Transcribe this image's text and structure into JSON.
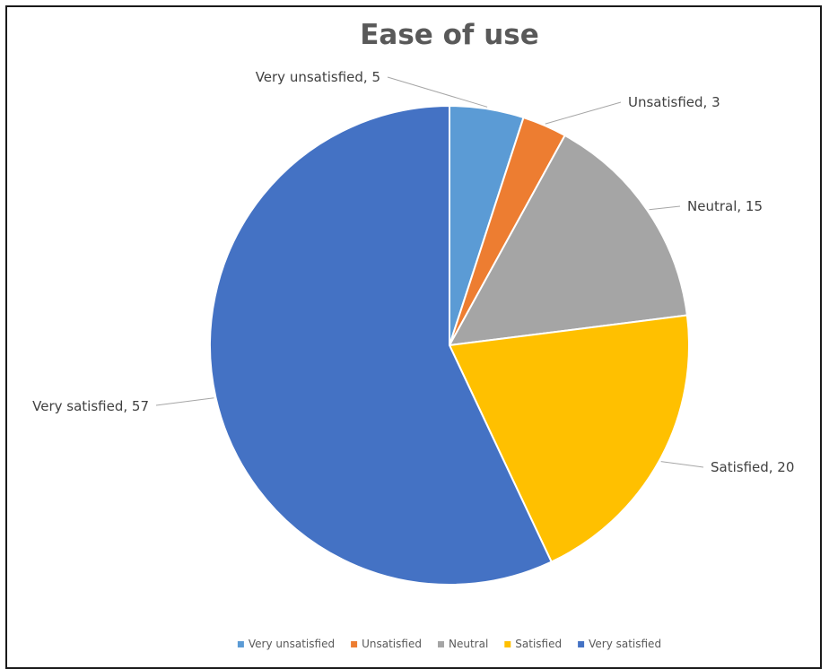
{
  "chart_data": {
    "type": "pie",
    "title": "Ease of use",
    "categories": [
      "Very unsatisfied",
      "Unsatisfied",
      "Neutral",
      "Satisfied",
      "Very satisfied"
    ],
    "values": [
      5,
      3,
      15,
      20,
      57
    ],
    "colors": [
      "#5b9bd5",
      "#ed7d31",
      "#a5a5a5",
      "#ffc000",
      "#4472c4"
    ],
    "data_labels": [
      "Very unsatisfied, 5",
      "Unsatisfied, 3",
      "Neutral, 15",
      "Satisfied, 20",
      "Very satisfied, 57"
    ],
    "legend_position": "bottom",
    "start_angle": "12 o'clock",
    "direction": "clockwise"
  }
}
